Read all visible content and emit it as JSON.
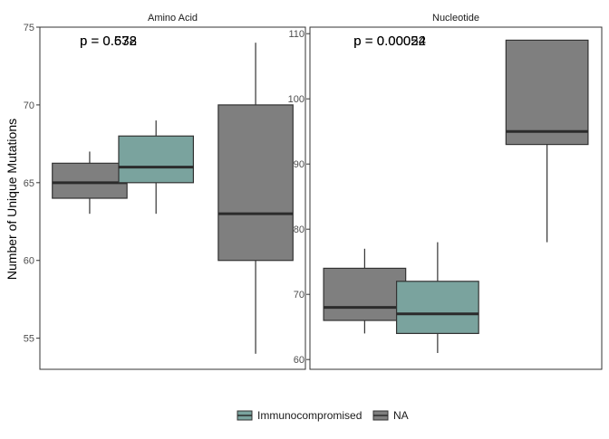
{
  "chart_data": {
    "type": "boxplot",
    "ylabel": "Number of Unique Mutations",
    "xlabel": "",
    "legend": {
      "position": "bottom",
      "entries": [
        {
          "label": "Immunocompromised",
          "color": "#7aa39e"
        },
        {
          "label": "NA",
          "color": "#7f7f7f"
        }
      ]
    },
    "panels": [
      {
        "title": "Amino Acid",
        "ylim": [
          53,
          75
        ],
        "yticks": [
          55,
          60,
          65,
          70,
          75
        ],
        "pvalues": [
          "p = 0.572",
          "p = 0.638"
        ],
        "boxes": [
          {
            "group": "NA",
            "min": 63,
            "q1": 64,
            "median": 65,
            "q3": 66.25,
            "max": 67
          },
          {
            "group": "Immunocompromised",
            "min": 63,
            "q1": 65,
            "median": 66,
            "q3": 68,
            "max": 69
          },
          {
            "group": "NA",
            "min": 54,
            "q1": 60,
            "median": 63,
            "q3": 70,
            "max": 74
          }
        ]
      },
      {
        "title": "Nucleotide",
        "ylim": [
          58.5,
          111
        ],
        "yticks": [
          60,
          70,
          80,
          90,
          100,
          110
        ],
        "pvalues": [
          "p = 0.00054",
          "p = 0.00022"
        ],
        "boxes": [
          {
            "group": "NA",
            "min": 64,
            "q1": 66,
            "median": 68,
            "q3": 74,
            "max": 77
          },
          {
            "group": "Immunocompromised",
            "min": 61,
            "q1": 64,
            "median": 67,
            "q3": 72,
            "max": 78
          },
          {
            "group": "NA",
            "min": 78,
            "q1": 93,
            "median": 95,
            "q3": 109,
            "max": 109
          }
        ]
      }
    ]
  }
}
